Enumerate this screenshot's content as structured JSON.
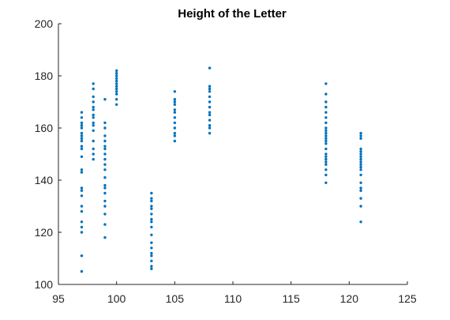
{
  "chart_data": {
    "type": "scatter",
    "title": "Height of the Letter",
    "xlabel": "",
    "ylabel": "",
    "xlim": [
      95,
      125
    ],
    "ylim": [
      100,
      200
    ],
    "x_ticks": [
      95,
      100,
      105,
      110,
      115,
      120,
      125
    ],
    "y_ticks": [
      100,
      120,
      140,
      160,
      180,
      200
    ],
    "grid": false,
    "marker_color": "#0072BD",
    "series": [
      {
        "points": [
          [
            97,
            105
          ],
          [
            97,
            111
          ],
          [
            97,
            120
          ],
          [
            97,
            122
          ],
          [
            97,
            124
          ],
          [
            97,
            128
          ],
          [
            97,
            130
          ],
          [
            97,
            134
          ],
          [
            97,
            136
          ],
          [
            97,
            137
          ],
          [
            97,
            143
          ],
          [
            97,
            144
          ],
          [
            97,
            149
          ],
          [
            97,
            152
          ],
          [
            97,
            153
          ],
          [
            97,
            155
          ],
          [
            97,
            156
          ],
          [
            97,
            157
          ],
          [
            97,
            158
          ],
          [
            97,
            160
          ],
          [
            97,
            161
          ],
          [
            97,
            162
          ],
          [
            97,
            164
          ],
          [
            97,
            166
          ],
          [
            98,
            148
          ],
          [
            98,
            150
          ],
          [
            98,
            152
          ],
          [
            98,
            155
          ],
          [
            98,
            159
          ],
          [
            98,
            161
          ],
          [
            98,
            162
          ],
          [
            98,
            164
          ],
          [
            98,
            165
          ],
          [
            98,
            167
          ],
          [
            98,
            168
          ],
          [
            98,
            170
          ],
          [
            98,
            172
          ],
          [
            98,
            175
          ],
          [
            98,
            177
          ],
          [
            99,
            118
          ],
          [
            99,
            123
          ],
          [
            99,
            127
          ],
          [
            99,
            130
          ],
          [
            99,
            132
          ],
          [
            99,
            135
          ],
          [
            99,
            137
          ],
          [
            99,
            138
          ],
          [
            99,
            141
          ],
          [
            99,
            144
          ],
          [
            99,
            146
          ],
          [
            99,
            148
          ],
          [
            99,
            150
          ],
          [
            99,
            152
          ],
          [
            99,
            153
          ],
          [
            99,
            155
          ],
          [
            99,
            157
          ],
          [
            99,
            160
          ],
          [
            99,
            162
          ],
          [
            99,
            171
          ],
          [
            100,
            169
          ],
          [
            100,
            171
          ],
          [
            100,
            173
          ],
          [
            100,
            174
          ],
          [
            100,
            175
          ],
          [
            100,
            176
          ],
          [
            100,
            177
          ],
          [
            100,
            178
          ],
          [
            100,
            179
          ],
          [
            100,
            180
          ],
          [
            100,
            181
          ],
          [
            100,
            182
          ],
          [
            103,
            106
          ],
          [
            103,
            107
          ],
          [
            103,
            109
          ],
          [
            103,
            111
          ],
          [
            103,
            112
          ],
          [
            103,
            114
          ],
          [
            103,
            116
          ],
          [
            103,
            119
          ],
          [
            103,
            122
          ],
          [
            103,
            124
          ],
          [
            103,
            125
          ],
          [
            103,
            127
          ],
          [
            103,
            129
          ],
          [
            103,
            130
          ],
          [
            103,
            132
          ],
          [
            103,
            133
          ],
          [
            103,
            135
          ],
          [
            105,
            155
          ],
          [
            105,
            157
          ],
          [
            105,
            158
          ],
          [
            105,
            160
          ],
          [
            105,
            162
          ],
          [
            105,
            164
          ],
          [
            105,
            166
          ],
          [
            105,
            167
          ],
          [
            105,
            169
          ],
          [
            105,
            170
          ],
          [
            105,
            171
          ],
          [
            105,
            174
          ],
          [
            108,
            158
          ],
          [
            108,
            160
          ],
          [
            108,
            161
          ],
          [
            108,
            163
          ],
          [
            108,
            165
          ],
          [
            108,
            166
          ],
          [
            108,
            168
          ],
          [
            108,
            170
          ],
          [
            108,
            172
          ],
          [
            108,
            174
          ],
          [
            108,
            175
          ],
          [
            108,
            176
          ],
          [
            108,
            183
          ],
          [
            118,
            139
          ],
          [
            118,
            142
          ],
          [
            118,
            144
          ],
          [
            118,
            146
          ],
          [
            118,
            147
          ],
          [
            118,
            148
          ],
          [
            118,
            149
          ],
          [
            118,
            150
          ],
          [
            118,
            152
          ],
          [
            118,
            154
          ],
          [
            118,
            155
          ],
          [
            118,
            156
          ],
          [
            118,
            157
          ],
          [
            118,
            158
          ],
          [
            118,
            159
          ],
          [
            118,
            160
          ],
          [
            118,
            162
          ],
          [
            118,
            164
          ],
          [
            118,
            166
          ],
          [
            118,
            168
          ],
          [
            118,
            170
          ],
          [
            118,
            173
          ],
          [
            118,
            177
          ],
          [
            121,
            124
          ],
          [
            121,
            130
          ],
          [
            121,
            133
          ],
          [
            121,
            136
          ],
          [
            121,
            137
          ],
          [
            121,
            139
          ],
          [
            121,
            142
          ],
          [
            121,
            144
          ],
          [
            121,
            145
          ],
          [
            121,
            146
          ],
          [
            121,
            147
          ],
          [
            121,
            148
          ],
          [
            121,
            149
          ],
          [
            121,
            150
          ],
          [
            121,
            151
          ],
          [
            121,
            152
          ],
          [
            121,
            156
          ],
          [
            121,
            157
          ],
          [
            121,
            158
          ]
        ]
      }
    ]
  }
}
